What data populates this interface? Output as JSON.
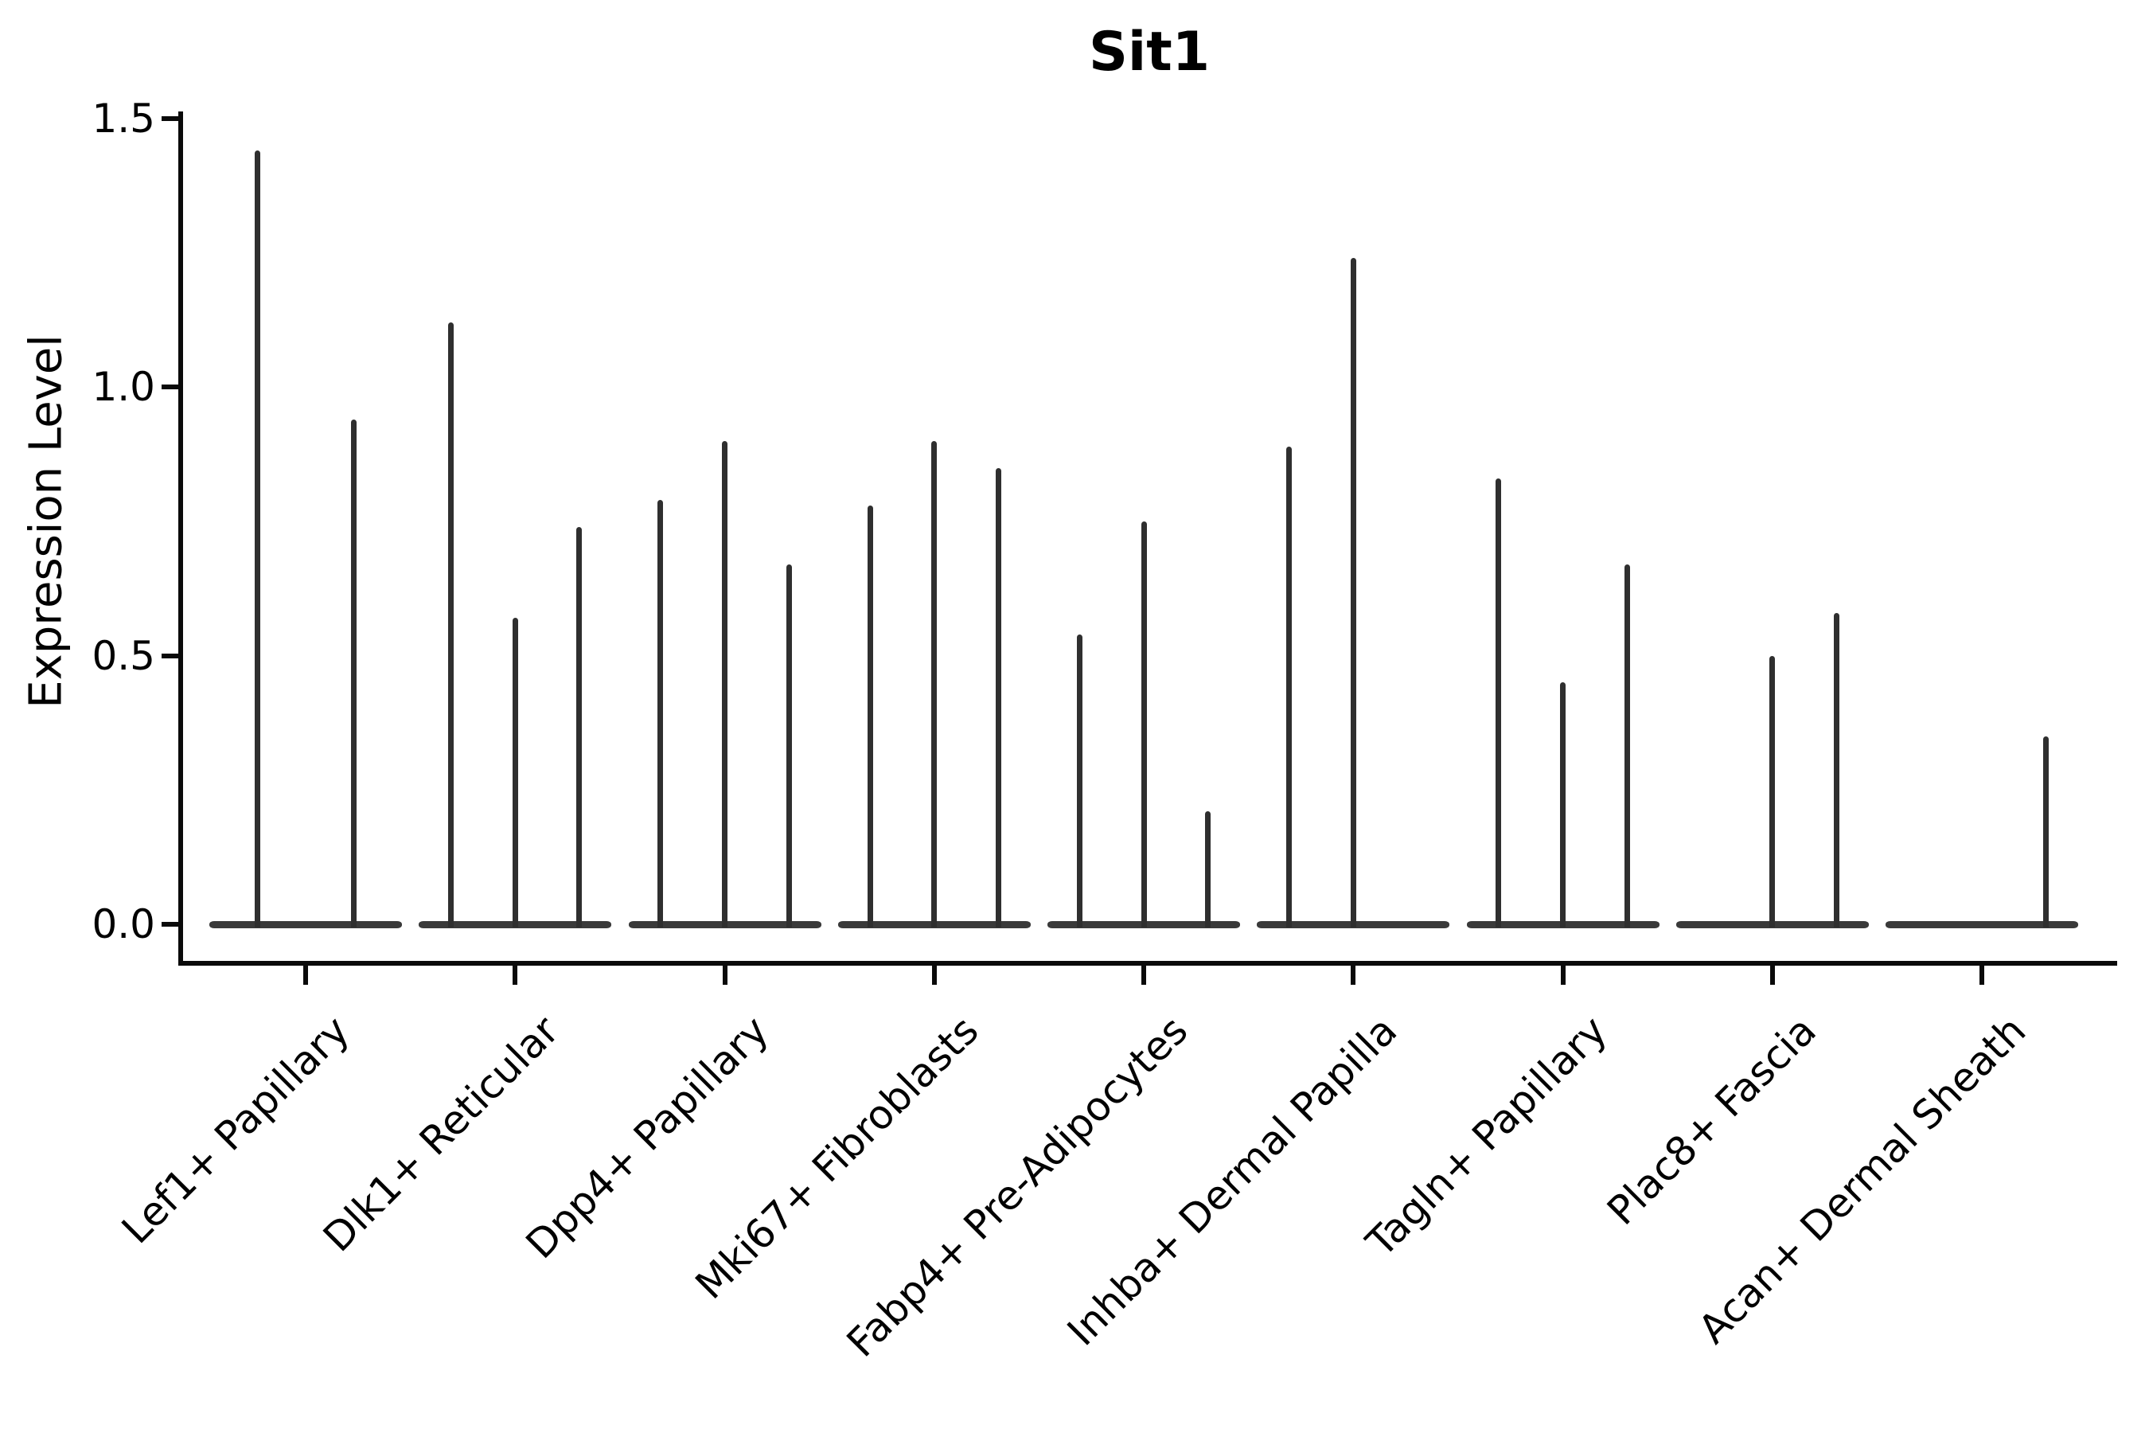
{
  "chart_data": {
    "type": "violin",
    "title": "Sit1",
    "xlabel": "",
    "ylabel": "Expression Level",
    "ylim": [
      0,
      1.5
    ],
    "ytick_values": [
      0.0,
      0.5,
      1.0,
      1.5
    ],
    "ytick_labels": [
      "0.0",
      "0.5",
      "1.0",
      "1.5"
    ],
    "grid": false,
    "legend": "none",
    "categories": [
      "Lef1+ Papillary",
      "Dlk1+ Reticular",
      "Dpp4+ Papillary",
      "Mki67+ Fibroblasts",
      "Fabp4+ Pre-Adipocytes",
      "Inhba+ Dermal Papilla",
      "Tagln+ Papillary",
      "Plac8+ Fascia",
      "Acan+ Dermal Sheath"
    ],
    "violin_groups": [
      {
        "category": "Lef1+ Papillary",
        "n_slots": 2,
        "violins": [
          {
            "slot": 1,
            "peak_expression": 1.44
          },
          {
            "slot": 2,
            "peak_expression": 0.94
          }
        ]
      },
      {
        "category": "Dlk1+ Reticular",
        "n_slots": 3,
        "violins": [
          {
            "slot": 1,
            "peak_expression": 1.12
          },
          {
            "slot": 2,
            "peak_expression": 0.57
          },
          {
            "slot": 3,
            "peak_expression": 0.74
          }
        ]
      },
      {
        "category": "Dpp4+ Papillary",
        "n_slots": 3,
        "violins": [
          {
            "slot": 1,
            "peak_expression": 0.79
          },
          {
            "slot": 2,
            "peak_expression": 0.9
          },
          {
            "slot": 3,
            "peak_expression": 0.67
          }
        ]
      },
      {
        "category": "Mki67+ Fibroblasts",
        "n_slots": 3,
        "violins": [
          {
            "slot": 1,
            "peak_expression": 0.78
          },
          {
            "slot": 2,
            "peak_expression": 0.9
          },
          {
            "slot": 3,
            "peak_expression": 0.85
          }
        ]
      },
      {
        "category": "Fabp4+ Pre-Adipocytes",
        "n_slots": 3,
        "violins": [
          {
            "slot": 1,
            "peak_expression": 0.54
          },
          {
            "slot": 2,
            "peak_expression": 0.75
          },
          {
            "slot": 3,
            "peak_expression": 0.21
          }
        ]
      },
      {
        "category": "Inhba+ Dermal Papilla",
        "n_slots": 3,
        "violins": [
          {
            "slot": 1,
            "peak_expression": 0.89
          },
          {
            "slot": 2,
            "peak_expression": 1.24
          }
        ]
      },
      {
        "category": "Tagln+ Papillary",
        "n_slots": 3,
        "violins": [
          {
            "slot": 1,
            "peak_expression": 0.83
          },
          {
            "slot": 2,
            "peak_expression": 0.45
          },
          {
            "slot": 3,
            "peak_expression": 0.67
          }
        ]
      },
      {
        "category": "Plac8+ Fascia",
        "n_slots": 3,
        "violins": [
          {
            "slot": 2,
            "peak_expression": 0.5
          },
          {
            "slot": 3,
            "peak_expression": 0.58
          }
        ]
      },
      {
        "category": "Acan+ Dermal Sheath",
        "n_slots": 3,
        "violins": [
          {
            "slot": 3,
            "peak_expression": 0.35
          }
        ]
      }
    ],
    "colors": {
      "violin_fill": "#2f2f2f",
      "violin_base_fill": "#3a3a3a",
      "axis": "#0a0a0a",
      "text": "#000000",
      "background": "#ffffff"
    }
  }
}
